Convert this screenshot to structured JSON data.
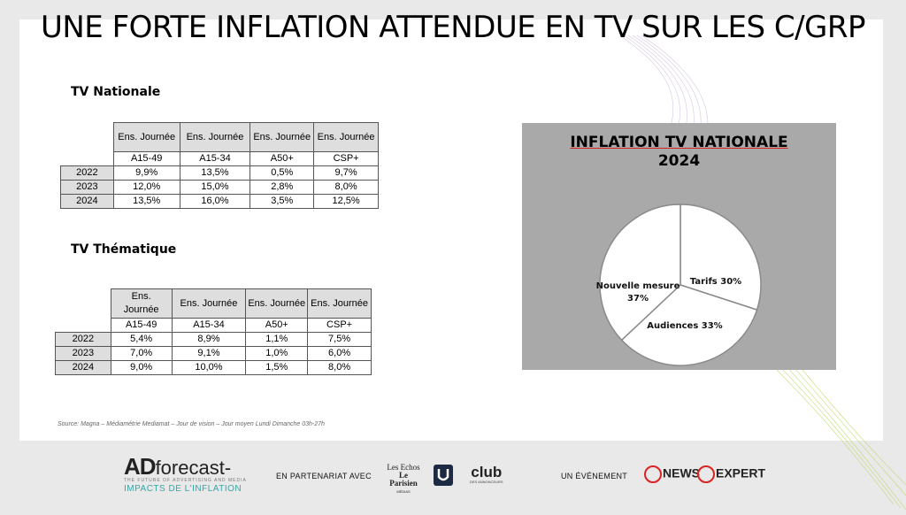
{
  "title": "UNE FORTE INFLATION ATTENDUE EN TV SUR LES C/GRP",
  "tv_nationale": {
    "heading": "TV Nationale",
    "headers": [
      "Ens. Journée",
      "Ens. Journée",
      "Ens. Journée",
      "Ens. Journée"
    ],
    "targets": [
      "A15-49",
      "A15-34",
      "A50+",
      "CSP+"
    ],
    "rows": [
      {
        "year": "2022",
        "values": [
          "9,9%",
          "13,5%",
          "0,5%",
          "9,7%"
        ]
      },
      {
        "year": "2023",
        "values": [
          "12,0%",
          "15,0%",
          "2,8%",
          "8,0%"
        ]
      },
      {
        "year": "2024",
        "values": [
          "13,5%",
          "16,0%",
          "3,5%",
          "12,5%"
        ]
      }
    ]
  },
  "tv_thematique": {
    "heading": "TV Thématique",
    "headers": [
      "Ens. Journée",
      "Ens. Journée",
      "Ens. Journée",
      "Ens. Journée"
    ],
    "targets": [
      "A15-49",
      "A15-34",
      "A50+",
      "CSP+"
    ],
    "rows": [
      {
        "year": "2022",
        "values": [
          "5,4%",
          "8,9%",
          "1,1%",
          "7,5%"
        ]
      },
      {
        "year": "2023",
        "values": [
          "7,0%",
          "9,1%",
          "1,0%",
          "6,0%"
        ]
      },
      {
        "year": "2024",
        "values": [
          "9,0%",
          "10,0%",
          "1,5%",
          "8,0%"
        ]
      }
    ]
  },
  "chart_data": {
    "type": "pie",
    "title_line1": "INFLATION TV NATIONALE",
    "title_line2": "2024",
    "slices": [
      {
        "label": "Tarifs 30%",
        "value": 30
      },
      {
        "label": "Audiences 33%",
        "value": 33
      },
      {
        "label": "Nouvelle mesure 37%",
        "value": 37
      }
    ],
    "slice_color": "#ffffff",
    "background": "#a9a9a9"
  },
  "source": "Source:  Magna – Médiamétrie Mediamat – Jour de vision – Jour moyen Lundi Dimanche 03h-27h",
  "footer": {
    "logo_main": "AD",
    "logo_word": "forecast-",
    "logo_tagline": "THE FUTURE OF ADVERTISING AND MEDIA",
    "logo_sub": "IMPACTS DE L'INFLATION",
    "partenariat": "EN PARTENARIAT AVEC",
    "partner1_line1": "Les Echos",
    "partner1_line2": "Le Parisien",
    "partner1_line3": "MÉDIAS",
    "partner3": "club",
    "partner3_sub": "DES ANNONCEURS",
    "evenement": "UN ÉVÉNEMENT",
    "cb_news": "NEWS",
    "cb_expert": "EXPERT"
  }
}
